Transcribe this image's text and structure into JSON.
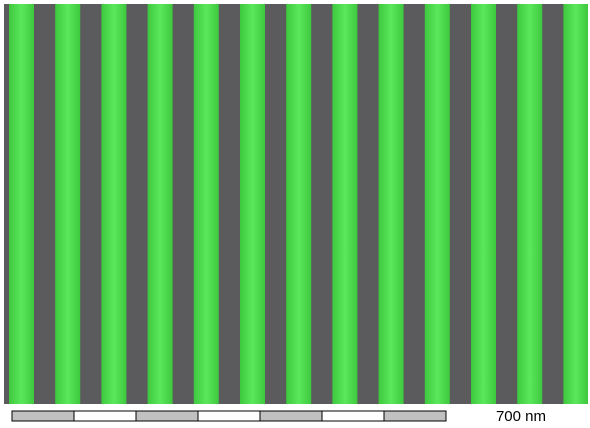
{
  "scale_bar": {
    "label": "700 nm"
  }
}
